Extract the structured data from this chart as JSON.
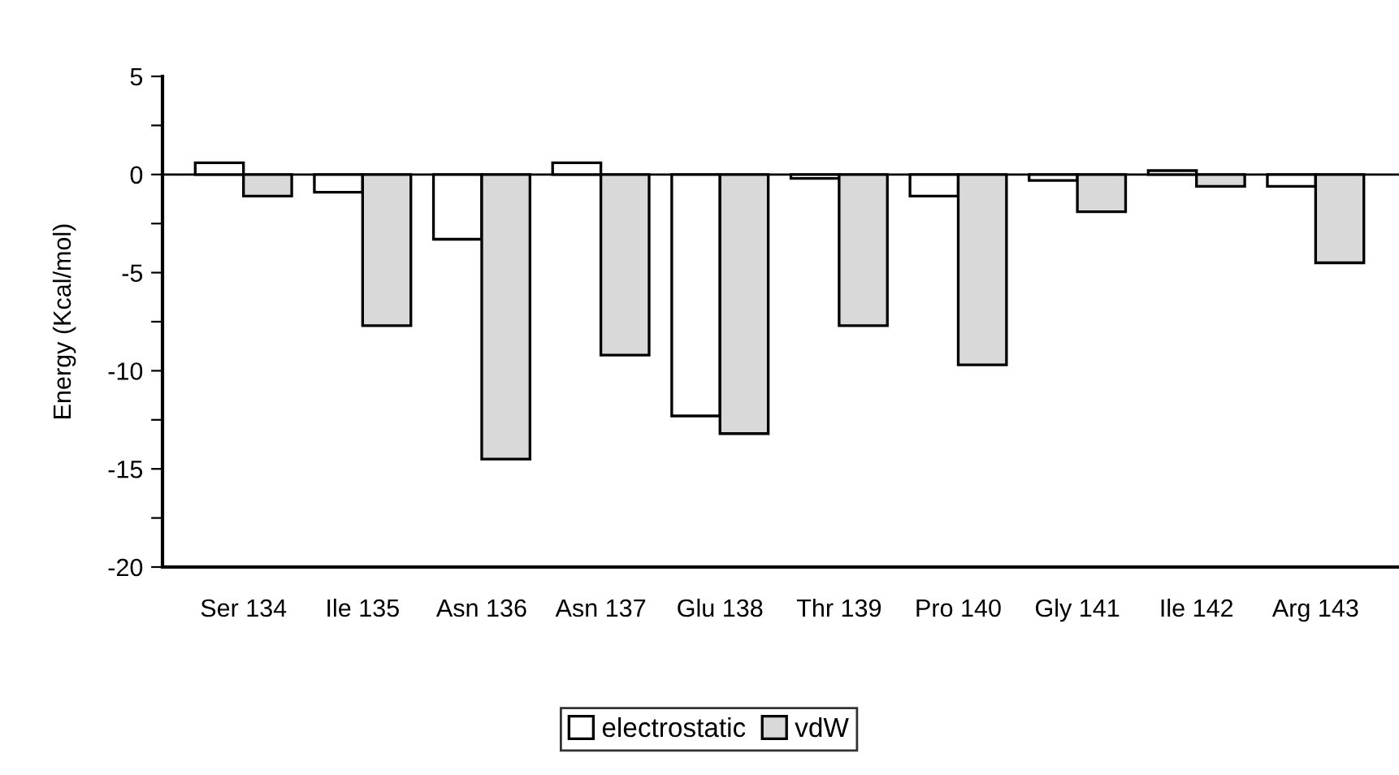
{
  "chart_data": {
    "type": "bar",
    "ylabel": "Energy (Kcal/mol)",
    "categories": [
      "Ser 134",
      "Ile 135",
      "Asn 136",
      "Asn 137",
      "Glu 138",
      "Thr 139",
      "Pro 140",
      "Gly 141",
      "Ile 142",
      "Arg 143"
    ],
    "series": [
      {
        "name": "electrostatic",
        "color": "#ffffff",
        "values": [
          0.6,
          -0.9,
          -3.3,
          0.6,
          -12.3,
          -0.2,
          -1.1,
          -0.3,
          0.2,
          -0.6
        ]
      },
      {
        "name": "vdW",
        "color": "#d9d9d9",
        "values": [
          -1.1,
          -7.7,
          -14.5,
          -9.2,
          -13.2,
          -7.7,
          -9.7,
          -1.9,
          -0.6,
          -4.5
        ]
      }
    ],
    "ylim": [
      -20,
      5
    ],
    "yticks": [
      -20,
      {
        "value": -17.5,
        "label": null
      },
      -15,
      {
        "value": -12.5,
        "label": null
      },
      -10,
      {
        "value": -7.5,
        "label": null
      },
      -5,
      {
        "value": -2.5,
        "label": null
      },
      0,
      {
        "value": 2.5,
        "label": null
      },
      5
    ],
    "ref_lines": [
      {
        "axis": "y",
        "value": 0,
        "color": "#000000"
      }
    ],
    "grid": false,
    "legend": "bottom"
  }
}
